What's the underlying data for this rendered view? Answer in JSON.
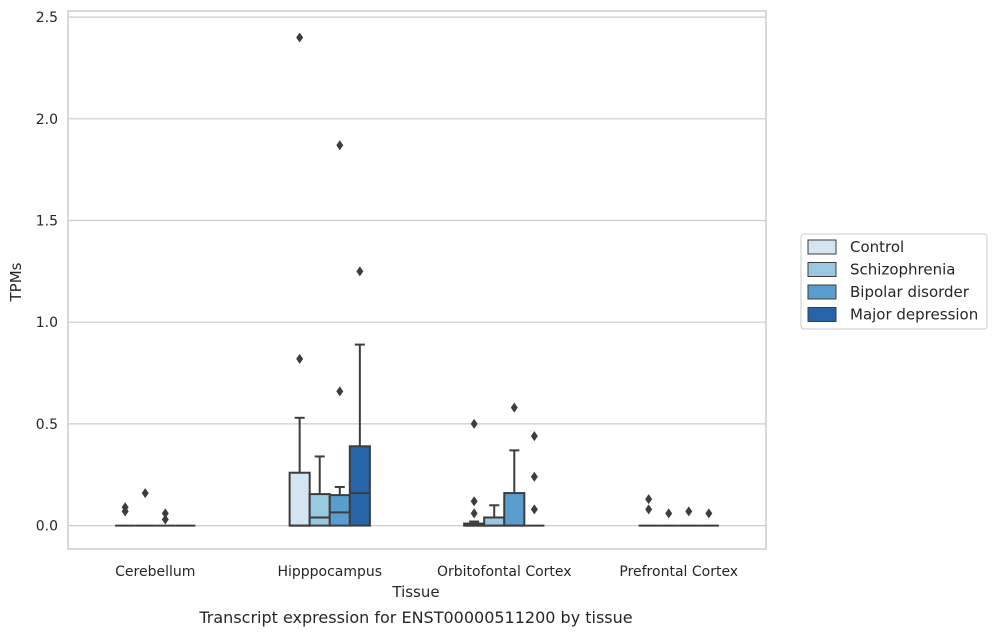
{
  "chart_data": {
    "type": "box",
    "title": "",
    "caption": "Transcript expression for ENST00000511200 by tissue",
    "xlabel": "Tissue",
    "ylabel": "TPMs",
    "ylim": [
      -0.115,
      2.53
    ],
    "yticks": [
      0.0,
      0.5,
      1.0,
      1.5,
      2.0,
      2.5
    ],
    "ytick_labels": [
      "0.0",
      "0.5",
      "1.0",
      "1.5",
      "2.0",
      "2.5"
    ],
    "categories": [
      "Cerebellum",
      "Hipppocampus",
      "Orbitofontal Cortex",
      "Prefrontal Cortex"
    ],
    "grid": "horizontal",
    "legend_position": "right",
    "series": [
      {
        "name": "Control",
        "color": "#d3e4f3",
        "boxes": [
          {
            "q1": 0,
            "median": 0,
            "q3": 0,
            "whisker_low": 0,
            "whisker_high": 0,
            "outliers": [
              0.09,
              0.07
            ]
          },
          {
            "q1": 0,
            "median": 0,
            "q3": 0.26,
            "whisker_low": 0,
            "whisker_high": 0.53,
            "outliers": [
              0.82,
              2.4
            ]
          },
          {
            "q1": 0,
            "median": 0,
            "q3": 0.01,
            "whisker_low": 0,
            "whisker_high": 0.02,
            "outliers": [
              0.5,
              0.12,
              0.06
            ]
          },
          {
            "q1": 0,
            "median": 0,
            "q3": 0,
            "whisker_low": 0,
            "whisker_high": 0,
            "outliers": [
              0.13,
              0.08
            ]
          }
        ]
      },
      {
        "name": "Schizophrenia",
        "color": "#9ac8e0",
        "boxes": [
          {
            "q1": 0,
            "median": 0,
            "q3": 0,
            "whisker_low": 0,
            "whisker_high": 0,
            "outliers": [
              0.16
            ]
          },
          {
            "q1": 0,
            "median": 0.04,
            "q3": 0.155,
            "whisker_low": 0,
            "whisker_high": 0.34,
            "outliers": []
          },
          {
            "q1": 0,
            "median": 0,
            "q3": 0.04,
            "whisker_low": 0,
            "whisker_high": 0.1,
            "outliers": []
          },
          {
            "q1": 0,
            "median": 0,
            "q3": 0,
            "whisker_low": 0,
            "whisker_high": 0,
            "outliers": [
              0.06
            ]
          }
        ]
      },
      {
        "name": "Bipolar disorder",
        "color": "#5a9ecf",
        "boxes": [
          {
            "q1": 0,
            "median": 0,
            "q3": 0,
            "whisker_low": 0,
            "whisker_high": 0,
            "outliers": [
              0.06,
              0.03
            ]
          },
          {
            "q1": 0,
            "median": 0.065,
            "q3": 0.15,
            "whisker_low": 0,
            "whisker_high": 0.19,
            "outliers": [
              0.66,
              1.87
            ]
          },
          {
            "q1": 0,
            "median": 0,
            "q3": 0.16,
            "whisker_low": 0,
            "whisker_high": 0.37,
            "outliers": [
              0.58
            ]
          },
          {
            "q1": 0,
            "median": 0,
            "q3": 0,
            "whisker_low": 0,
            "whisker_high": 0,
            "outliers": [
              0.07
            ]
          }
        ]
      },
      {
        "name": "Major depression",
        "color": "#2665a8",
        "boxes": [
          {
            "q1": 0,
            "median": 0,
            "q3": 0,
            "whisker_low": 0,
            "whisker_high": 0,
            "outliers": []
          },
          {
            "q1": 0,
            "median": 0.16,
            "q3": 0.39,
            "whisker_low": 0,
            "whisker_high": 0.89,
            "outliers": [
              1.25
            ]
          },
          {
            "q1": 0,
            "median": 0,
            "q3": 0,
            "whisker_low": 0,
            "whisker_high": 0,
            "outliers": [
              0.44,
              0.24,
              0.08
            ]
          },
          {
            "q1": 0,
            "median": 0,
            "q3": 0,
            "whisker_low": 0,
            "whisker_high": 0,
            "outliers": [
              0.06
            ]
          }
        ]
      }
    ]
  }
}
